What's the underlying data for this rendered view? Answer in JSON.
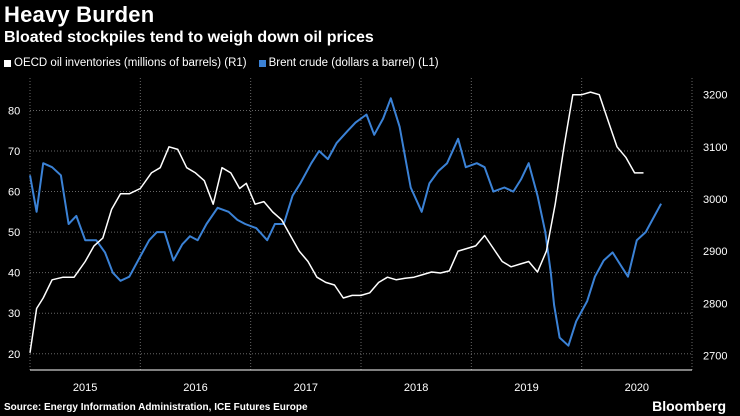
{
  "header": {
    "title": "Heavy Burden",
    "subtitle": "Bloated stockpiles tend to weigh down oil prices"
  },
  "legend": {
    "items": [
      {
        "label": "OECD oil inventories (millions of barrels) (R1)",
        "color": "#ffffff"
      },
      {
        "label": "Brent crude (dollars a barrel) (L1)",
        "color": "#3b82d6"
      }
    ]
  },
  "footer": {
    "source": "Source: Energy Information Administration, ICE Futures Europe",
    "brand": "Bloomberg"
  },
  "chart_data": {
    "type": "line",
    "title": "Heavy Burden",
    "subtitle": "Bloated stockpiles tend to weigh down oil prices",
    "x_labels": [
      "2015",
      "2016",
      "2017",
      "2018",
      "2019",
      "2020"
    ],
    "x_start": 2015.0,
    "x_end": 2021.0,
    "left_axis": {
      "ticks": [
        20,
        30,
        40,
        50,
        60,
        70,
        80
      ],
      "range": [
        16,
        88
      ],
      "label": "Brent crude (dollars a barrel)"
    },
    "right_axis": {
      "ticks": [
        2700,
        2800,
        2900,
        3000,
        3100,
        3200
      ],
      "range": [
        2672,
        3232
      ],
      "label": "OECD oil inventories (millions of barrels)"
    },
    "series": [
      {
        "name": "Brent crude (dollars a barrel) (L1)",
        "axis": "left",
        "color": "#3b82d6",
        "points": [
          [
            2015.0,
            64
          ],
          [
            2015.06,
            55
          ],
          [
            2015.12,
            67
          ],
          [
            2015.2,
            66
          ],
          [
            2015.28,
            64
          ],
          [
            2015.35,
            52
          ],
          [
            2015.42,
            54
          ],
          [
            2015.5,
            48
          ],
          [
            2015.6,
            48
          ],
          [
            2015.68,
            45
          ],
          [
            2015.75,
            40
          ],
          [
            2015.82,
            38
          ],
          [
            2015.9,
            39
          ],
          [
            2016.0,
            44
          ],
          [
            2016.08,
            48
          ],
          [
            2016.15,
            50
          ],
          [
            2016.22,
            50
          ],
          [
            2016.3,
            43
          ],
          [
            2016.38,
            47
          ],
          [
            2016.45,
            49
          ],
          [
            2016.52,
            48
          ],
          [
            2016.6,
            52
          ],
          [
            2016.7,
            56
          ],
          [
            2016.8,
            55
          ],
          [
            2016.88,
            53
          ],
          [
            2016.95,
            52
          ],
          [
            2017.05,
            51
          ],
          [
            2017.15,
            48
          ],
          [
            2017.22,
            52
          ],
          [
            2017.3,
            52
          ],
          [
            2017.38,
            59
          ],
          [
            2017.45,
            62
          ],
          [
            2017.55,
            67
          ],
          [
            2017.62,
            70
          ],
          [
            2017.7,
            68
          ],
          [
            2017.78,
            72
          ],
          [
            2017.88,
            75
          ],
          [
            2017.95,
            77
          ],
          [
            2018.05,
            79
          ],
          [
            2018.12,
            74
          ],
          [
            2018.2,
            78
          ],
          [
            2018.27,
            83
          ],
          [
            2018.35,
            76
          ],
          [
            2018.45,
            61
          ],
          [
            2018.55,
            55
          ],
          [
            2018.62,
            62
          ],
          [
            2018.7,
            65
          ],
          [
            2018.78,
            67
          ],
          [
            2018.88,
            73
          ],
          [
            2018.95,
            66
          ],
          [
            2019.05,
            67
          ],
          [
            2019.12,
            66
          ],
          [
            2019.2,
            60
          ],
          [
            2019.3,
            61
          ],
          [
            2019.38,
            60
          ],
          [
            2019.45,
            63
          ],
          [
            2019.52,
            67
          ],
          [
            2019.6,
            59
          ],
          [
            2019.67,
            50
          ],
          [
            2019.72,
            40
          ],
          [
            2019.75,
            32
          ],
          [
            2019.8,
            24
          ],
          [
            2019.88,
            22
          ],
          [
            2019.95,
            28
          ],
          [
            2020.05,
            33
          ],
          [
            2020.12,
            39
          ],
          [
            2020.2,
            43
          ],
          [
            2020.28,
            45
          ],
          [
            2020.35,
            42
          ],
          [
            2020.42,
            39
          ],
          [
            2020.5,
            48
          ],
          [
            2020.58,
            50
          ],
          [
            2020.66,
            54
          ],
          [
            2020.72,
            57
          ]
        ]
      },
      {
        "name": "OECD oil inventories (millions of barrels) (R1)",
        "axis": "right",
        "color": "#ffffff",
        "points": [
          [
            2015.0,
            2705
          ],
          [
            2015.06,
            2790
          ],
          [
            2015.12,
            2810
          ],
          [
            2015.2,
            2845
          ],
          [
            2015.3,
            2850
          ],
          [
            2015.4,
            2850
          ],
          [
            2015.5,
            2880
          ],
          [
            2015.58,
            2910
          ],
          [
            2015.66,
            2925
          ],
          [
            2015.74,
            2980
          ],
          [
            2015.82,
            3010
          ],
          [
            2015.9,
            3010
          ],
          [
            2016.0,
            3020
          ],
          [
            2016.1,
            3050
          ],
          [
            2016.18,
            3060
          ],
          [
            2016.26,
            3100
          ],
          [
            2016.34,
            3095
          ],
          [
            2016.42,
            3060
          ],
          [
            2016.5,
            3050
          ],
          [
            2016.58,
            3035
          ],
          [
            2016.66,
            2990
          ],
          [
            2016.74,
            3060
          ],
          [
            2016.82,
            3050
          ],
          [
            2016.9,
            3020
          ],
          [
            2016.96,
            3030
          ],
          [
            2017.04,
            2990
          ],
          [
            2017.12,
            2995
          ],
          [
            2017.2,
            2975
          ],
          [
            2017.28,
            2960
          ],
          [
            2017.36,
            2930
          ],
          [
            2017.44,
            2900
          ],
          [
            2017.52,
            2880
          ],
          [
            2017.6,
            2850
          ],
          [
            2017.68,
            2840
          ],
          [
            2017.76,
            2835
          ],
          [
            2017.84,
            2810
          ],
          [
            2017.92,
            2815
          ],
          [
            2018.0,
            2815
          ],
          [
            2018.08,
            2820
          ],
          [
            2018.16,
            2840
          ],
          [
            2018.24,
            2850
          ],
          [
            2018.32,
            2845
          ],
          [
            2018.4,
            2848
          ],
          [
            2018.48,
            2850
          ],
          [
            2018.56,
            2855
          ],
          [
            2018.64,
            2860
          ],
          [
            2018.72,
            2858
          ],
          [
            2018.8,
            2862
          ],
          [
            2018.88,
            2900
          ],
          [
            2018.96,
            2905
          ],
          [
            2019.04,
            2910
          ],
          [
            2019.12,
            2930
          ],
          [
            2019.2,
            2905
          ],
          [
            2019.28,
            2880
          ],
          [
            2019.36,
            2870
          ],
          [
            2019.44,
            2875
          ],
          [
            2019.52,
            2880
          ],
          [
            2019.6,
            2860
          ],
          [
            2019.68,
            2900
          ],
          [
            2019.76,
            2990
          ],
          [
            2019.84,
            3100
          ],
          [
            2019.92,
            3200
          ],
          [
            2020.0,
            3200
          ],
          [
            2020.08,
            3205
          ],
          [
            2020.16,
            3200
          ],
          [
            2020.24,
            3150
          ],
          [
            2020.32,
            3100
          ],
          [
            2020.4,
            3080
          ],
          [
            2020.48,
            3050
          ],
          [
            2020.56,
            3050
          ]
        ]
      }
    ],
    "grid": true
  }
}
